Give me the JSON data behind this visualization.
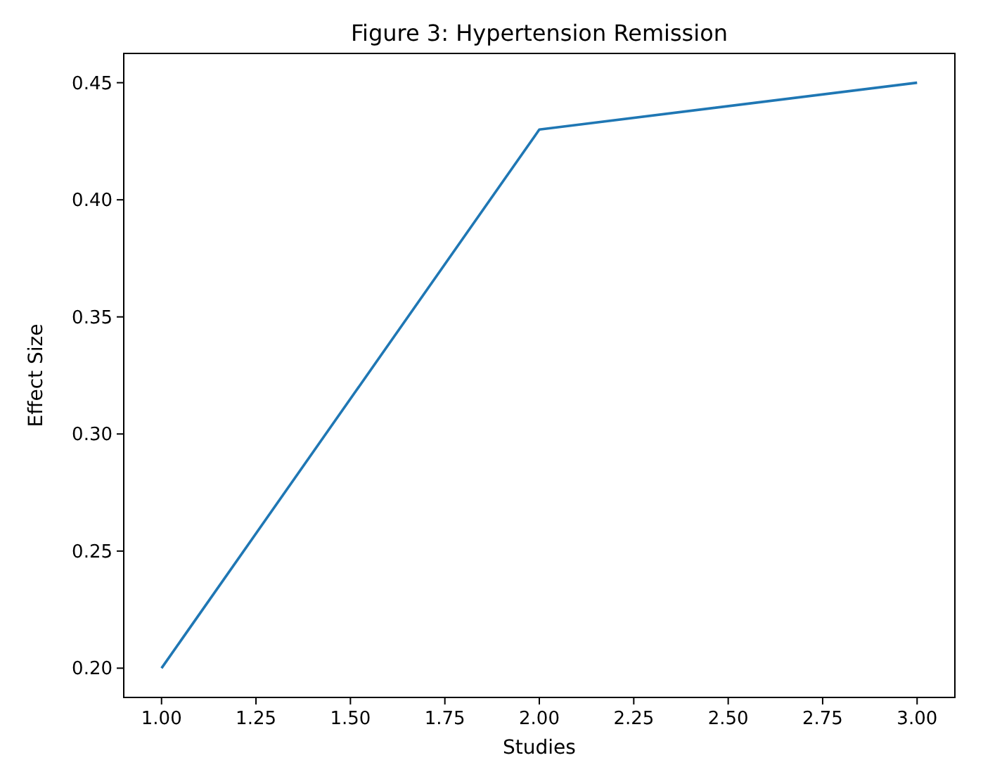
{
  "chart_data": {
    "type": "line",
    "title": "Figure 3: Hypertension Remission",
    "xlabel": "Studies",
    "ylabel": "Effect Size",
    "x": [
      1,
      2,
      3
    ],
    "series": [
      {
        "color": "#1f77b4",
        "values": [
          0.2,
          0.43,
          0.45
        ]
      }
    ],
    "xlim": [
      0.9,
      3.1
    ],
    "xticks": [
      {
        "value": 1,
        "label": "1.00"
      },
      {
        "value": 1.25,
        "label": "1.25"
      },
      {
        "value": 1.5,
        "label": "1.50"
      },
      {
        "value": 1.75,
        "label": "1.75"
      },
      {
        "value": 2,
        "label": "2.00"
      },
      {
        "value": 2.25,
        "label": "2.25"
      },
      {
        "value": 2.5,
        "label": "2.50"
      },
      {
        "value": 2.75,
        "label": "2.75"
      },
      {
        "value": 3,
        "label": "3.00"
      }
    ],
    "ylim": [
      0.1875,
      0.4625
    ],
    "yticks": [
      {
        "value": 0.2,
        "label": "0.20"
      },
      {
        "value": 0.25,
        "label": "0.25"
      },
      {
        "value": 0.3,
        "label": "0.30"
      },
      {
        "value": 0.35,
        "label": "0.35"
      },
      {
        "value": 0.4,
        "label": "0.40"
      },
      {
        "value": 0.45,
        "label": "0.45"
      }
    ],
    "grid": false,
    "marker": "none",
    "line_style": "solid"
  }
}
